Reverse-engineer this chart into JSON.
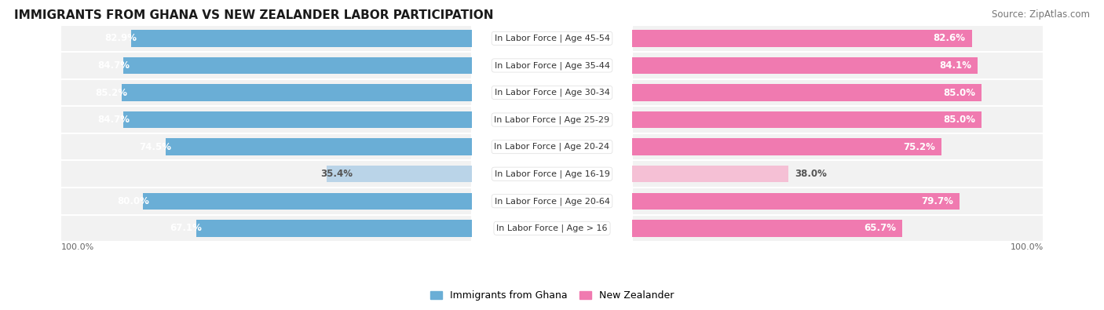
{
  "title": "IMMIGRANTS FROM GHANA VS NEW ZEALANDER LABOR PARTICIPATION",
  "source": "Source: ZipAtlas.com",
  "categories": [
    "In Labor Force | Age > 16",
    "In Labor Force | Age 20-64",
    "In Labor Force | Age 16-19",
    "In Labor Force | Age 20-24",
    "In Labor Force | Age 25-29",
    "In Labor Force | Age 30-34",
    "In Labor Force | Age 35-44",
    "In Labor Force | Age 45-54"
  ],
  "ghana_values": [
    67.1,
    80.0,
    35.4,
    74.5,
    84.7,
    85.2,
    84.7,
    82.9
  ],
  "nz_values": [
    65.7,
    79.7,
    38.0,
    75.2,
    85.0,
    85.0,
    84.1,
    82.6
  ],
  "ghana_color_strong": "#6aaed6",
  "ghana_color_light": "#bad4e8",
  "nz_color_strong": "#f07ab0",
  "nz_color_light": "#f5c0d5",
  "row_bg": "#f0f0f0",
  "row_bg_alt": "#e8e8e8",
  "label_color_white": "#ffffff",
  "label_color_dark": "#555555",
  "threshold": 50,
  "max_val": 100,
  "legend_ghana": "Immigrants from Ghana",
  "legend_nz": "New Zealander",
  "title_fontsize": 11,
  "source_fontsize": 8.5,
  "bar_label_fontsize": 8.5,
  "category_fontsize": 8,
  "legend_fontsize": 9,
  "axis_label_fontsize": 8,
  "bottom_labels": [
    "100.0%",
    "100.0%"
  ]
}
